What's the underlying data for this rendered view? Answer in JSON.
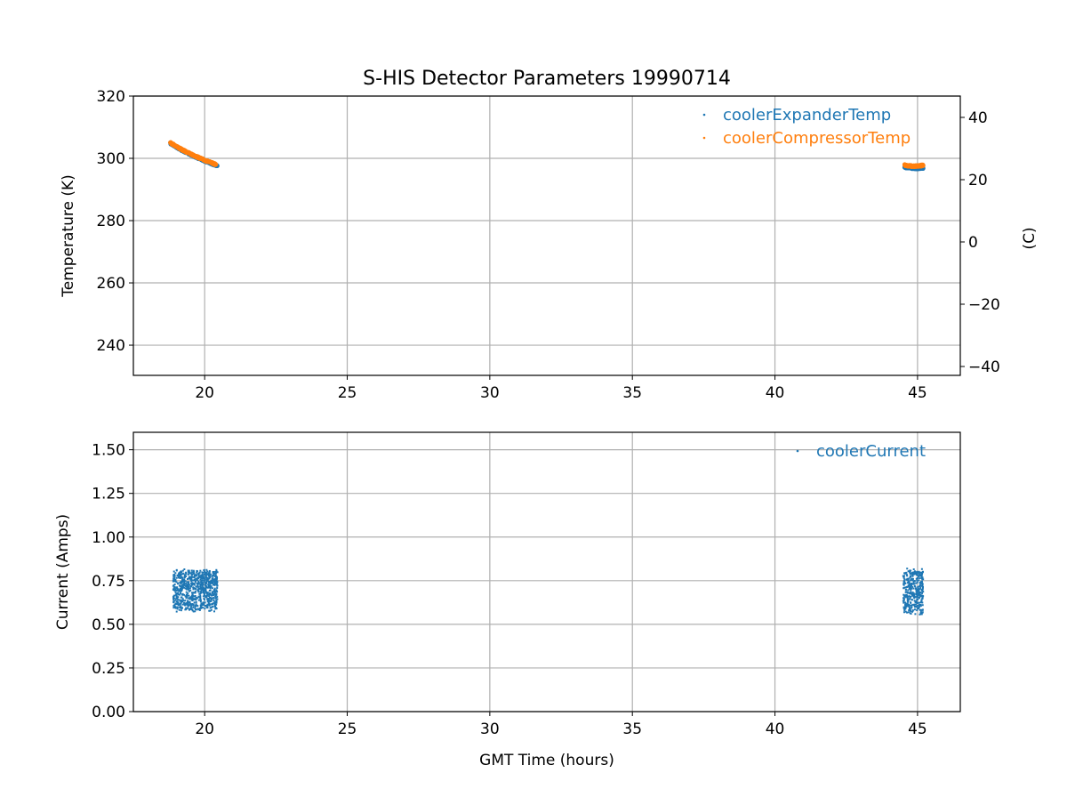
{
  "chart_data": [
    {
      "type": "scatter",
      "title": "S-HIS Detector Parameters 19990714",
      "xlabel": "",
      "ylabel": "Temperature (K)",
      "ylabel_right": "(C)",
      "xlim": [
        17.5,
        46.5
      ],
      "ylim": [
        230.3,
        320
      ],
      "xticks": [
        20,
        25,
        30,
        35,
        40,
        45
      ],
      "yticks": [
        240,
        260,
        280,
        300,
        320
      ],
      "yticks_right": [
        -40,
        -20,
        0,
        20,
        40
      ],
      "right_axis_offset": -273.15,
      "grid": true,
      "legend_position": "top-right",
      "series": [
        {
          "name": "coolerExpanderTemp",
          "color": "#1f77b4",
          "segments": [
            {
              "x": [
                18.8,
                19.2,
                19.6,
                20.0,
                20.45
              ],
              "y": [
                304.8,
                302.6,
                300.8,
                299.2,
                297.6
              ]
            },
            {
              "x": [
                44.55,
                44.8,
                45.0,
                45.2
              ],
              "y": [
                297.2,
                296.9,
                296.8,
                297.0
              ]
            }
          ]
        },
        {
          "name": "coolerCompressorTemp",
          "color": "#ff7f0e",
          "segments": [
            {
              "x": [
                18.8,
                19.2,
                19.6,
                20.0,
                20.4
              ],
              "y": [
                305.0,
                302.8,
                301.0,
                299.4,
                298.0
              ]
            },
            {
              "x": [
                44.55,
                44.8,
                45.0,
                45.2
              ],
              "y": [
                297.8,
                297.5,
                297.5,
                297.8
              ]
            }
          ]
        }
      ]
    },
    {
      "type": "scatter",
      "title": "",
      "xlabel": "GMT Time (hours)",
      "ylabel": "Current (Amps)",
      "xlim": [
        17.5,
        46.5
      ],
      "ylim": [
        0,
        1.6
      ],
      "xticks": [
        20,
        25,
        30,
        35,
        40,
        45
      ],
      "yticks": [
        "0.00",
        "0.25",
        "0.50",
        "0.75",
        "1.00",
        "1.25",
        "1.50"
      ],
      "grid": true,
      "legend_position": "top-right",
      "series": [
        {
          "name": "coolerCurrent",
          "color": "#1f77b4",
          "bands": [
            {
              "x": [
                18.9,
                20.45
              ],
              "y_min": 0.57,
              "y_max": 0.82
            },
            {
              "x": [
                44.5,
                45.2
              ],
              "y_min": 0.55,
              "y_max": 0.83
            }
          ]
        }
      ]
    }
  ]
}
